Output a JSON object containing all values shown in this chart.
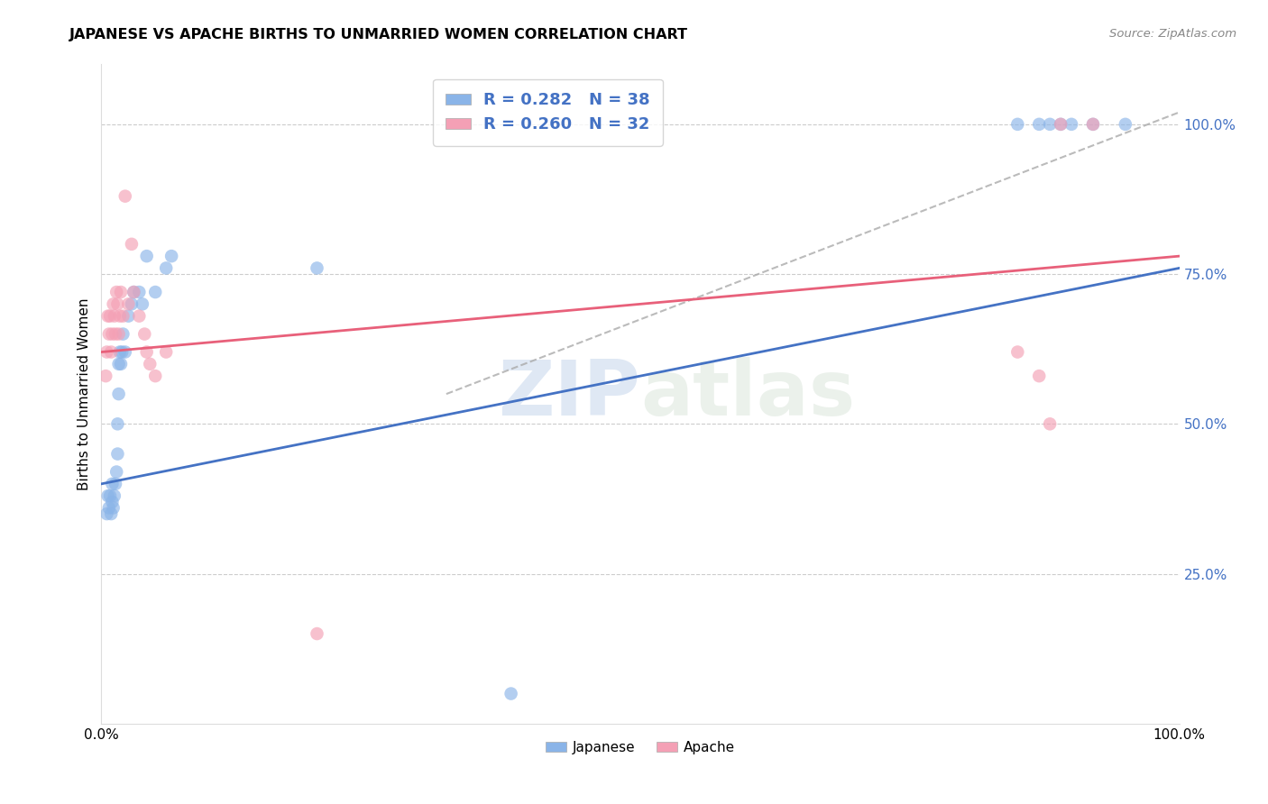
{
  "title": "JAPANESE VS APACHE BIRTHS TO UNMARRIED WOMEN CORRELATION CHART",
  "source": "Source: ZipAtlas.com",
  "ylabel": "Births to Unmarried Women",
  "right_yticks": [
    "100.0%",
    "75.0%",
    "50.0%",
    "25.0%"
  ],
  "right_ytick_vals": [
    1.0,
    0.75,
    0.5,
    0.25
  ],
  "color_japanese": "#8AB4E8",
  "color_apache": "#F4A0B5",
  "color_line_japanese": "#4472C4",
  "color_line_apache": "#E8607A",
  "color_dashed": "#AAAAAA",
  "watermark_zip": "ZIP",
  "watermark_atlas": "atlas",
  "japanese_x": [
    0.005,
    0.006,
    0.007,
    0.008,
    0.009,
    0.01,
    0.01,
    0.011,
    0.012,
    0.013,
    0.014,
    0.015,
    0.015,
    0.016,
    0.016,
    0.017,
    0.018,
    0.019,
    0.02,
    0.022,
    0.025,
    0.028,
    0.03,
    0.035,
    0.038,
    0.042,
    0.05,
    0.06,
    0.065,
    0.2,
    0.38,
    0.85,
    0.87,
    0.88,
    0.89,
    0.9,
    0.92,
    0.95
  ],
  "japanese_y": [
    0.35,
    0.38,
    0.36,
    0.38,
    0.35,
    0.37,
    0.4,
    0.36,
    0.38,
    0.4,
    0.42,
    0.45,
    0.5,
    0.55,
    0.6,
    0.62,
    0.6,
    0.62,
    0.65,
    0.62,
    0.68,
    0.7,
    0.72,
    0.72,
    0.7,
    0.78,
    0.72,
    0.76,
    0.78,
    0.76,
    0.05,
    1.0,
    1.0,
    1.0,
    1.0,
    1.0,
    1.0,
    1.0
  ],
  "apache_x": [
    0.004,
    0.005,
    0.006,
    0.007,
    0.008,
    0.009,
    0.01,
    0.011,
    0.012,
    0.013,
    0.014,
    0.015,
    0.016,
    0.017,
    0.018,
    0.02,
    0.022,
    0.025,
    0.028,
    0.03,
    0.035,
    0.04,
    0.042,
    0.045,
    0.05,
    0.06,
    0.2,
    0.85,
    0.87,
    0.88,
    0.89,
    0.92
  ],
  "apache_y": [
    0.58,
    0.62,
    0.68,
    0.65,
    0.68,
    0.62,
    0.65,
    0.7,
    0.68,
    0.65,
    0.72,
    0.7,
    0.65,
    0.68,
    0.72,
    0.68,
    0.88,
    0.7,
    0.8,
    0.72,
    0.68,
    0.65,
    0.62,
    0.6,
    0.58,
    0.62,
    0.15,
    0.62,
    0.58,
    0.5,
    1.0,
    1.0
  ],
  "xlim": [
    0.0,
    1.0
  ],
  "ylim": [
    0.0,
    1.1
  ],
  "japanese_line_x": [
    0.0,
    1.0
  ],
  "japanese_line_y": [
    0.4,
    0.76
  ],
  "apache_line_x": [
    0.0,
    1.0
  ],
  "apache_line_y": [
    0.62,
    0.78
  ],
  "dashed_line_x": [
    0.32,
    1.0
  ],
  "dashed_line_y": [
    0.55,
    1.02
  ]
}
